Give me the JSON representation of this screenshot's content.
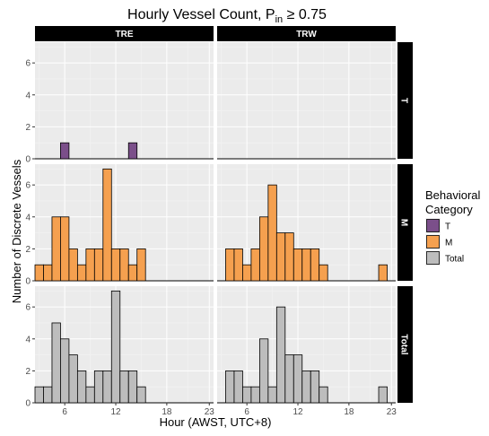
{
  "chart_data": {
    "type": "bar",
    "title": "Hourly Vessel Count, P",
    "title_subscript": "in",
    "title_suffix": " ≥ 0.75",
    "xlabel": "Hour (AWST, UTC+8)",
    "ylabel": "Number of Discrete Vessels",
    "xlim": [
      2.5,
      23.5
    ],
    "x_ticks": [
      6,
      12,
      18,
      23
    ],
    "ylim": [
      0,
      7.3
    ],
    "y_ticks": [
      0,
      2,
      4,
      6
    ],
    "grid": true,
    "columns": [
      "TRE",
      "TRW"
    ],
    "rows": [
      "T",
      "M",
      "Total"
    ],
    "legend": {
      "title_line1": "Behavioral",
      "title_line2": "Category",
      "position": "right",
      "entries": [
        {
          "name": "T",
          "color": "#7b4f8a"
        },
        {
          "name": "M",
          "color": "#f5a04f"
        },
        {
          "name": "Total",
          "color": "#bdbdbd"
        }
      ]
    },
    "panels": [
      {
        "column": "TRE",
        "row": "T",
        "color": "#7b4f8a",
        "x": [
          6,
          14
        ],
        "values": [
          1,
          1
        ]
      },
      {
        "column": "TRW",
        "row": "T",
        "color": "#7b4f8a",
        "x": [],
        "values": []
      },
      {
        "column": "TRE",
        "row": "M",
        "color": "#f5a04f",
        "x": [
          3,
          4,
          5,
          6,
          7,
          8,
          9,
          10,
          11,
          12,
          13,
          14,
          15
        ],
        "values": [
          1,
          1,
          4,
          4,
          2,
          1,
          2,
          2,
          7,
          2,
          2,
          1,
          2
        ]
      },
      {
        "column": "TRW",
        "row": "M",
        "color": "#f5a04f",
        "x": [
          4,
          5,
          6,
          7,
          8,
          9,
          10,
          11,
          12,
          13,
          14,
          15,
          22
        ],
        "values": [
          2,
          2,
          1,
          2,
          4,
          6,
          3,
          3,
          2,
          2,
          2,
          1,
          1
        ]
      },
      {
        "column": "TRE",
        "row": "Total",
        "color": "#bdbdbd",
        "x": [
          3,
          4,
          5,
          6,
          7,
          8,
          9,
          10,
          11,
          12,
          13,
          14,
          15
        ],
        "values": [
          1,
          1,
          5,
          4,
          3,
          2,
          1,
          2,
          2,
          7,
          2,
          2,
          1
        ]
      },
      {
        "column": "TRW",
        "row": "Total",
        "color": "#bdbdbd",
        "x": [
          4,
          5,
          6,
          7,
          8,
          9,
          10,
          11,
          12,
          13,
          14,
          15,
          22
        ],
        "values": [
          2,
          2,
          1,
          1,
          4,
          1,
          6,
          3,
          3,
          2,
          2,
          1,
          1
        ]
      }
    ]
  }
}
